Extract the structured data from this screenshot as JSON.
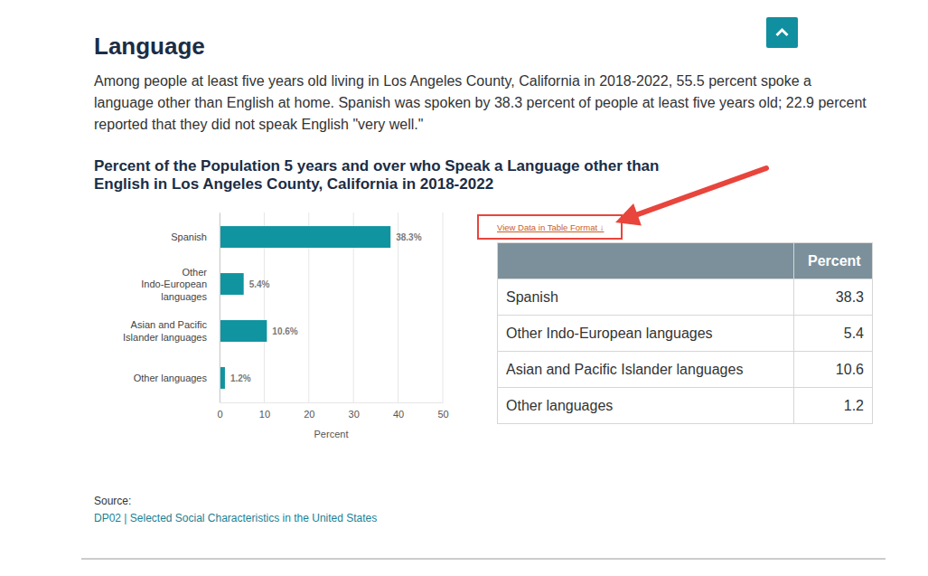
{
  "page": {
    "heading": "Language",
    "paragraph": "Among people at least five years old living in Los Angeles County, California in 2018-2022, 55.5 percent spoke a language other than English at home. Spanish was spoken by 38.3 percent of people at least five years old; 22.9 percent reported that they did not speak English \"very well.\"",
    "link": "View Data in Table Format ↓",
    "source_label": "Source:",
    "source_link": "DP02 | Selected Social Characteristics in the United States"
  },
  "chart_data": {
    "type": "bar",
    "orientation": "horizontal",
    "title": "Percent of the Population 5 years and over who Speak a Language other than English in Los Angeles County, California in 2018-2022",
    "categories": [
      "Spanish",
      "Other Indo-European languages",
      "Asian and Pacific Islander languages",
      "Other languages"
    ],
    "values": [
      38.3,
      5.4,
      10.6,
      1.2
    ],
    "value_labels": [
      "38.3%",
      "5.4%",
      "10.6%",
      "1.2%"
    ],
    "color": "#0f94a0",
    "xlim": [
      0,
      50
    ],
    "xticks": [
      0,
      10,
      20,
      30,
      40,
      50
    ],
    "xlabel": "Percent",
    "grid": true,
    "data_labels": true
  },
  "table": {
    "columns": [
      "Percent"
    ],
    "rows": [
      [
        "Spanish",
        38.3
      ],
      [
        "Other Indo-European languages",
        5.4
      ],
      [
        "Asian and Pacific Islander languages",
        10.6
      ],
      [
        "Other languages",
        1.2
      ]
    ]
  }
}
